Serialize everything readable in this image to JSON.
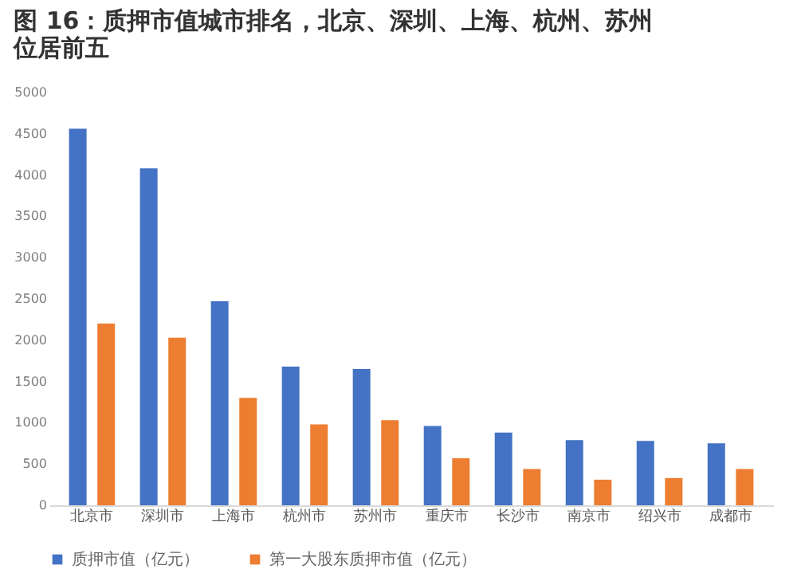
{
  "chart_data": {
    "type": "bar",
    "title": "图 16：质押市值城市排名，北京、深圳、上海、杭州、苏州位居前五",
    "categories": [
      "北京市",
      "深圳市",
      "上海市",
      "杭州市",
      "苏州市",
      "重庆市",
      "长沙市",
      "南京市",
      "绍兴市",
      "成都市"
    ],
    "series": [
      {
        "name": "质押市值（亿元）",
        "color": "#4472c4",
        "values": [
          4560,
          4080,
          2470,
          1680,
          1650,
          960,
          880,
          790,
          780,
          750
        ]
      },
      {
        "name": "第一大股东质押市值（亿元）",
        "color": "#ed7d31",
        "values": [
          2200,
          2030,
          1300,
          980,
          1030,
          570,
          440,
          310,
          330,
          440
        ]
      }
    ],
    "ylim": [
      0,
      5000
    ],
    "yticks": [
      0,
      500,
      1000,
      1500,
      2000,
      2500,
      3000,
      3500,
      4000,
      4500,
      5000
    ],
    "grid": false,
    "legend": "bottom"
  }
}
